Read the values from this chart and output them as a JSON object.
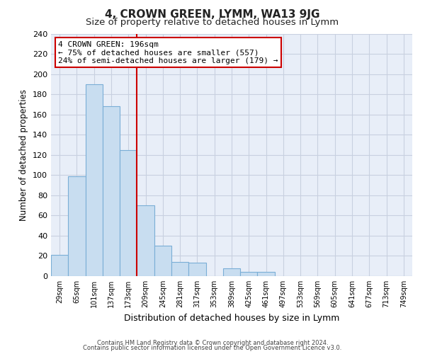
{
  "title": "4, CROWN GREEN, LYMM, WA13 9JG",
  "subtitle": "Size of property relative to detached houses in Lymm",
  "xlabel": "Distribution of detached houses by size in Lymm",
  "ylabel": "Number of detached properties",
  "bar_labels": [
    "29sqm",
    "65sqm",
    "101sqm",
    "137sqm",
    "173sqm",
    "209sqm",
    "245sqm",
    "281sqm",
    "317sqm",
    "353sqm",
    "389sqm",
    "425sqm",
    "461sqm",
    "497sqm",
    "533sqm",
    "569sqm",
    "605sqm",
    "641sqm",
    "677sqm",
    "713sqm",
    "749sqm"
  ],
  "bar_values": [
    21,
    99,
    190,
    168,
    125,
    70,
    30,
    14,
    13,
    0,
    8,
    4,
    4,
    0,
    0,
    0,
    0,
    0,
    0,
    0,
    0
  ],
  "bar_color": "#c8ddf0",
  "bar_edge_color": "#7aaed6",
  "vline_color": "#cc0000",
  "annotation_text": "4 CROWN GREEN: 196sqm\n← 75% of detached houses are smaller (557)\n24% of semi-detached houses are larger (179) →",
  "annotation_box_color": "#ffffff",
  "annotation_box_edge": "#cc0000",
  "ylim": [
    0,
    240
  ],
  "yticks": [
    0,
    20,
    40,
    60,
    80,
    100,
    120,
    140,
    160,
    180,
    200,
    220,
    240
  ],
  "footer_line1": "Contains HM Land Registry data © Crown copyright and database right 2024.",
  "footer_line2": "Contains public sector information licensed under the Open Government Licence v3.0.",
  "bg_color": "#e8eef8",
  "grid_color": "#c8d0e0",
  "title_fontsize": 11,
  "subtitle_fontsize": 9.5
}
